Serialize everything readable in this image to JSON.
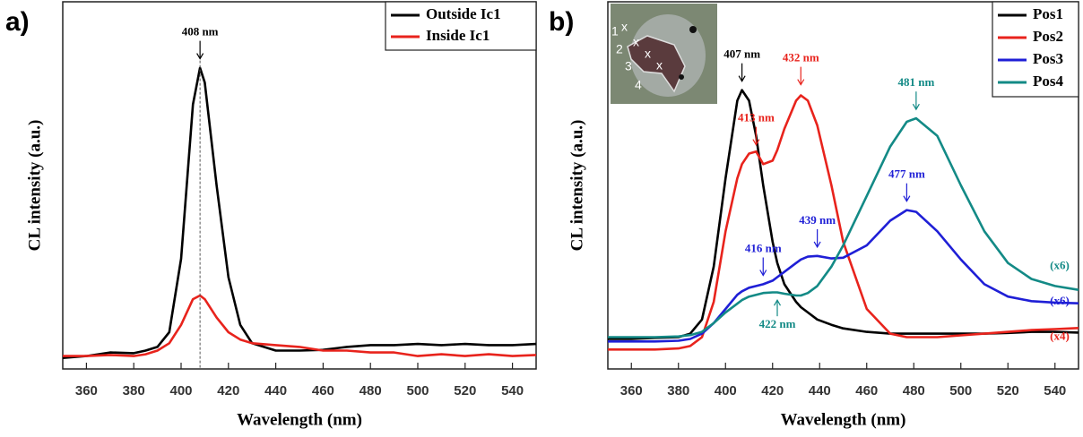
{
  "chart_data": [
    {
      "type": "line",
      "label": "a)",
      "xlabel": "Wavelength (nm)",
      "ylabel": "CL intensity (a.u.)",
      "xlim": [
        350,
        550
      ],
      "xticks": [
        360,
        380,
        400,
        420,
        440,
        460,
        480,
        500,
        520,
        540
      ],
      "ylim": [
        0,
        100
      ],
      "legend": "upper right",
      "x": [
        350,
        360,
        370,
        380,
        385,
        390,
        395,
        400,
        405,
        408,
        410,
        415,
        420,
        425,
        430,
        440,
        450,
        460,
        470,
        480,
        490,
        500,
        510,
        520,
        530,
        540,
        550
      ],
      "series": [
        {
          "name": "Outside Ic1",
          "color": "#000000",
          "values": [
            3,
            3.5,
            4.5,
            4.3,
            5,
            6,
            10,
            30,
            72,
            82,
            78,
            50,
            25,
            12,
            7,
            5,
            5,
            5.2,
            6,
            6.5,
            6.5,
            6.8,
            6.5,
            6.8,
            6.5,
            6.5,
            6.8
          ]
        },
        {
          "name": "Inside Ic1",
          "color": "#e8231c",
          "values": [
            3.5,
            3.5,
            3.8,
            3.5,
            4,
            5,
            7,
            12,
            19,
            20,
            19,
            14,
            10,
            8,
            7,
            6.5,
            6,
            5,
            5,
            4.5,
            4.5,
            3.5,
            4,
            3.5,
            4,
            3.5,
            3.8
          ]
        }
      ],
      "annotations": [
        {
          "text": "408 nm",
          "x": 408,
          "y": 84,
          "color": "#000000",
          "arrow": "down",
          "dashed": true
        }
      ]
    },
    {
      "type": "line",
      "label": "b)",
      "xlabel": "Wavelength (nm)",
      "ylabel": "CL intensity (a.u.)",
      "xlim": [
        350,
        550
      ],
      "xticks": [
        360,
        380,
        400,
        420,
        440,
        460,
        480,
        500,
        520,
        540
      ],
      "ylim": [
        -4,
        100
      ],
      "legend": "upper right",
      "inset_labels": [
        "1",
        "2",
        "3",
        "4"
      ],
      "x": [
        350,
        360,
        370,
        380,
        385,
        390,
        395,
        400,
        405,
        407,
        410,
        413,
        416,
        420,
        422,
        425,
        430,
        432,
        435,
        439,
        445,
        450,
        460,
        470,
        477,
        481,
        490,
        500,
        510,
        520,
        530,
        540,
        550
      ],
      "series": [
        {
          "name": "Pos1",
          "color": "#000000",
          "values": [
            4.5,
            4.5,
            4.8,
            5,
            6,
            10,
            25,
            50,
            72,
            75,
            72,
            62,
            48,
            32,
            26,
            20,
            15,
            13.5,
            12,
            10,
            8.5,
            7.5,
            6.5,
            6,
            6,
            6,
            6,
            6,
            6,
            6.2,
            6.5,
            6.5,
            6.3
          ]
        },
        {
          "name": "Pos2",
          "color": "#e8231c",
          "values": [
            1.5,
            1.5,
            1.5,
            1.8,
            2.5,
            5,
            15,
            35,
            50,
            54,
            57,
            57.6,
            54,
            55,
            58,
            64,
            72,
            73.5,
            72,
            65,
            48,
            32,
            13,
            6,
            5,
            5,
            5,
            5.5,
            6,
            6.5,
            7,
            7.3,
            7.6
          ]
        },
        {
          "name": "Pos3",
          "color": "#1f1fd6",
          "values": [
            3.8,
            3.8,
            3.8,
            4,
            4.5,
            6,
            9,
            13,
            17,
            18,
            19,
            19.5,
            20,
            21,
            22,
            23.5,
            26,
            27,
            27.8,
            28,
            27.3,
            27.5,
            31,
            38,
            41,
            40.5,
            35,
            27,
            20,
            16.5,
            15.2,
            14.8,
            14.6
          ]
        },
        {
          "name": "Pos4",
          "color": "#138a86",
          "values": [
            5,
            5,
            5,
            5.2,
            5.6,
            6.5,
            9,
            12,
            14.5,
            15.5,
            16.5,
            17,
            17.5,
            17.7,
            17.7,
            17.3,
            16.8,
            16.8,
            17.5,
            19.5,
            25,
            31,
            45,
            59,
            66,
            67,
            62,
            48,
            35,
            26,
            21.5,
            19.5,
            18.4
          ]
        }
      ],
      "annotations": [
        {
          "text": "407 nm",
          "x": 407,
          "y": 77,
          "color": "#000000",
          "arrow": "down"
        },
        {
          "text": "413 nm",
          "x": 413,
          "y": 59,
          "color": "#e8231c",
          "arrow": "down"
        },
        {
          "text": "432 nm",
          "x": 432,
          "y": 76,
          "color": "#e8231c",
          "arrow": "down"
        },
        {
          "text": "481 nm",
          "x": 481,
          "y": 69,
          "color": "#138a86",
          "arrow": "down"
        },
        {
          "text": "477 nm",
          "x": 477,
          "y": 43,
          "color": "#1f1fd6",
          "arrow": "down"
        },
        {
          "text": "439 nm",
          "x": 439,
          "y": 30,
          "color": "#1f1fd6",
          "arrow": "down"
        },
        {
          "text": "416 nm",
          "x": 416,
          "y": 22,
          "color": "#1f1fd6",
          "arrow": "down"
        },
        {
          "text": "422 nm",
          "x": 422,
          "y": 16,
          "color": "#138a86",
          "arrow": "up"
        },
        {
          "text": "(x6)",
          "x": 542,
          "y": 25,
          "color": "#138a86"
        },
        {
          "text": "(x6)",
          "x": 542,
          "y": 15,
          "color": "#1f1fd6"
        },
        {
          "text": "(x4)",
          "x": 542,
          "y": 5,
          "color": "#e8231c"
        }
      ]
    }
  ]
}
